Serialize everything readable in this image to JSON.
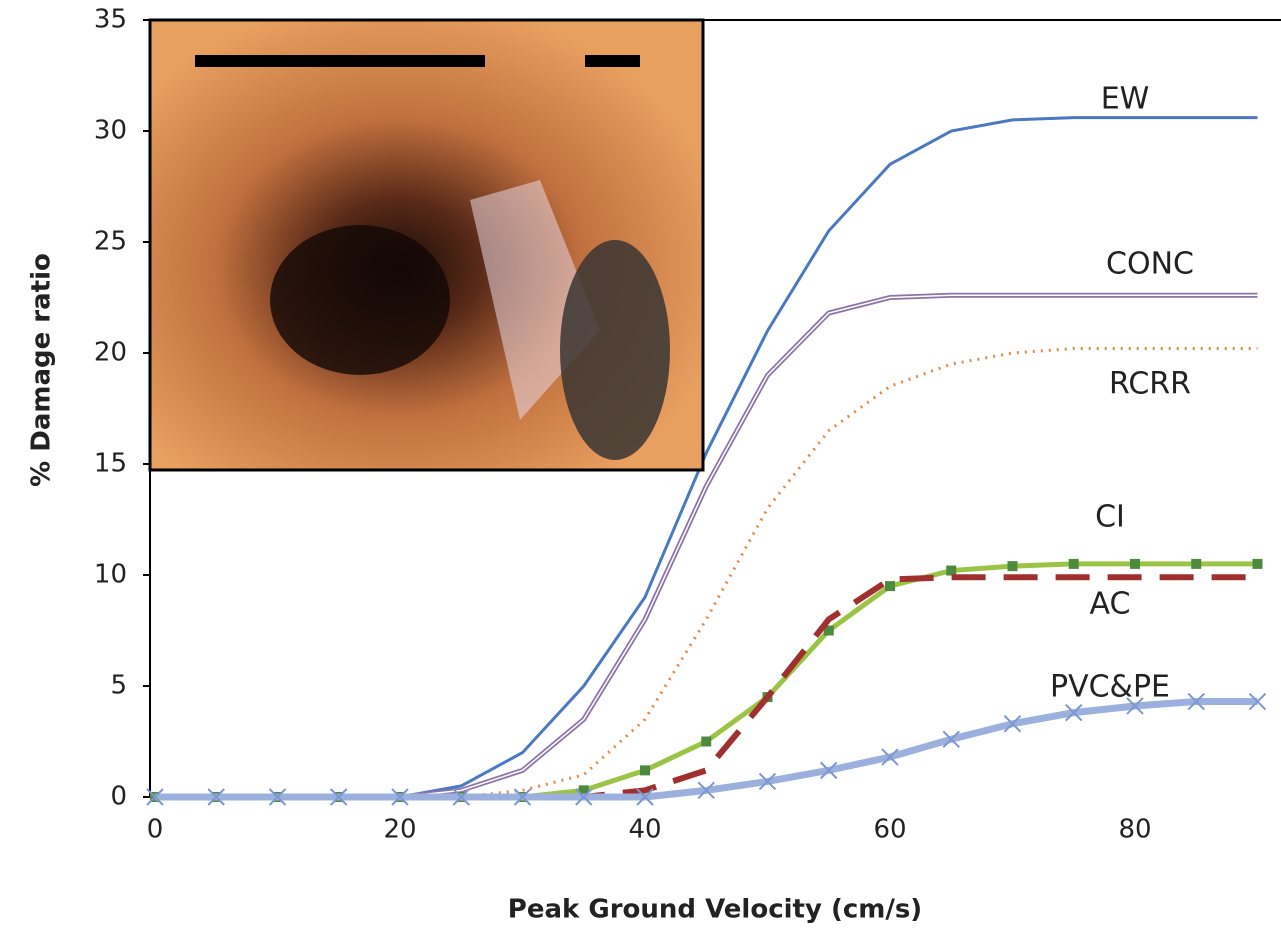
{
  "chart_data": {
    "type": "line",
    "xlabel": "Peak Ground Velocity (cm/s)",
    "ylabel": "% Damage ratio",
    "x": [
      0,
      5,
      10,
      15,
      20,
      25,
      30,
      35,
      40,
      45,
      50,
      55,
      60,
      65,
      70,
      75,
      80,
      85,
      90
    ],
    "xlim": [
      0,
      92
    ],
    "ylim": [
      0,
      35
    ],
    "xticks": [
      0,
      20,
      40,
      60,
      80
    ],
    "yticks": [
      0,
      5,
      10,
      15,
      20,
      25,
      30,
      35
    ],
    "series": [
      {
        "name": "EW",
        "color": "#4a78c2",
        "line_style": "solid",
        "values": [
          0,
          0,
          0,
          0,
          0,
          0.5,
          2,
          5,
          9,
          15.5,
          21,
          25.5,
          28.5,
          30,
          30.5,
          30.6,
          30.6,
          30.6,
          30.6
        ]
      },
      {
        "name": "CONC",
        "color": "#8c74a8",
        "line_style": "double",
        "values": [
          0,
          0,
          0,
          0,
          0,
          0.3,
          1.2,
          3.5,
          8,
          14,
          19,
          21.8,
          22.5,
          22.6,
          22.6,
          22.6,
          22.6,
          22.6,
          22.6
        ]
      },
      {
        "name": "RCRR",
        "color": "#e08a4a",
        "line_style": "dotted",
        "values": [
          0,
          0,
          0,
          0,
          0,
          0,
          0.3,
          1,
          3.5,
          8,
          13,
          16.5,
          18.5,
          19.5,
          20,
          20.2,
          20.2,
          20.2,
          20.2
        ]
      },
      {
        "name": "CI",
        "color": "#9bc447",
        "marker_color": "#4e8a3e",
        "line_style": "solid",
        "marker": "square",
        "values": [
          0,
          0,
          0,
          0,
          0,
          0,
          0,
          0.3,
          1.2,
          2.5,
          4.5,
          7.5,
          9.5,
          10.2,
          10.4,
          10.5,
          10.5,
          10.5,
          10.5
        ]
      },
      {
        "name": "AC",
        "color": "#a0302e",
        "line_style": "dashed",
        "values": [
          0,
          0,
          0,
          0,
          0,
          0,
          0,
          0,
          0.3,
          1.2,
          4.5,
          8,
          9.8,
          9.9,
          9.9,
          9.9,
          9.9,
          9.9,
          9.9
        ]
      },
      {
        "name": "PVC&PE",
        "color": "#9bb0dd",
        "line_style": "thick",
        "marker": "x",
        "values": [
          0,
          0,
          0,
          0,
          0,
          0,
          0,
          0,
          0,
          0.3,
          0.7,
          1.2,
          1.8,
          2.6,
          3.3,
          3.8,
          4.1,
          4.3,
          4.3
        ]
      }
    ]
  }
}
